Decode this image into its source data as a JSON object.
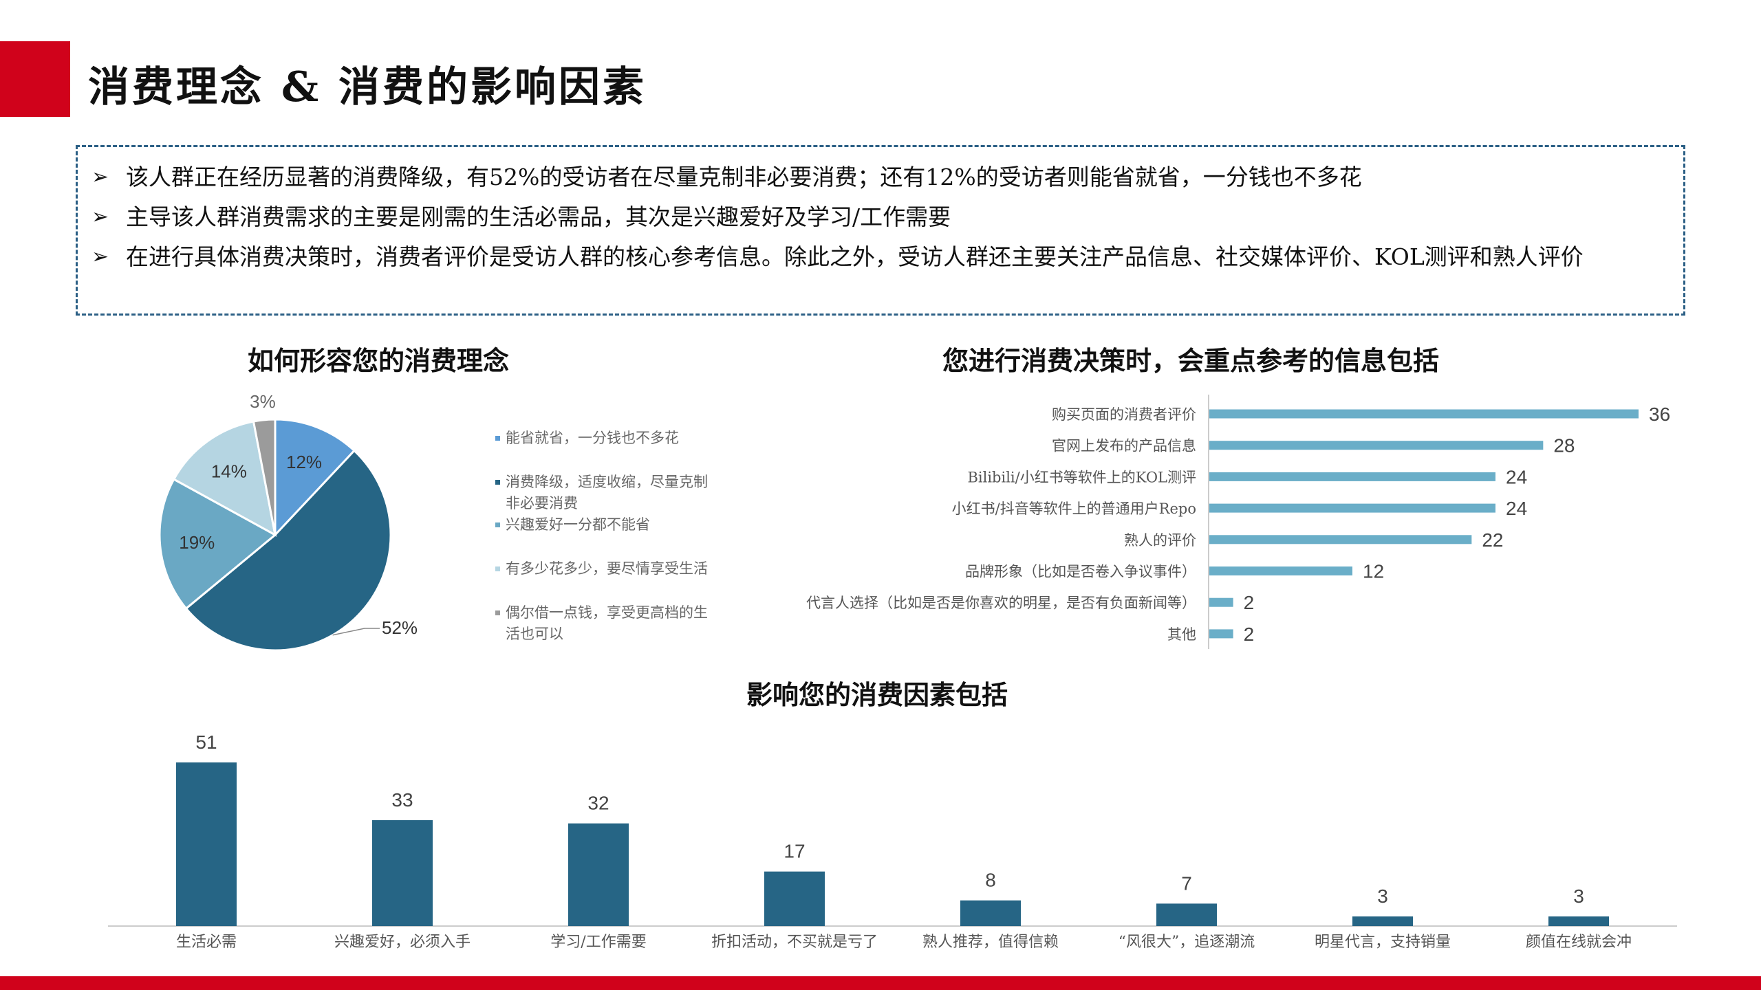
{
  "page": {
    "title": "消费理念 & 消费的影响因素",
    "bullet_symbol": "➢",
    "bullets": [
      "该人群正在经历显著的消费降级，有52%的受访者在尽量克制非必要消费；还有12%的受访者则能省就省，一分钱也不多花",
      "主导该人群消费需求的主要是刚需的生活必需品，其次是兴趣爱好及学习/工作需要",
      "在进行具体消费决策时，消费者评价是受访人群的核心参考信息。除此之外，受访人群还主要关注产品信息、社交媒体评价、KOL测评和熟人评价"
    ],
    "colors": {
      "accent": "#d0021b",
      "box_border": "#2b5f85"
    }
  },
  "chart_data": [
    {
      "type": "pie",
      "title": "如何形容您的消费理念",
      "slices": [
        {
          "label": "能省就省，一分钱也不多花",
          "value": 12,
          "display": "12%",
          "color": "#5b9bd5"
        },
        {
          "label": "消费降级，适度收缩，尽量克制非必要消费",
          "value": 52,
          "display": "52%",
          "color": "#266585"
        },
        {
          "label": "兴趣爱好一分都不能省",
          "value": 19,
          "display": "19%",
          "color": "#6aa8c4"
        },
        {
          "label": "有多少花多少，要尽情享受生活",
          "value": 14,
          "display": "14%",
          "color": "#b5d5e2"
        },
        {
          "label": "偶尔借一点钱，享受更高档的生活也可以",
          "value": 3,
          "display": "3%",
          "color": "#9b9b9b"
        }
      ],
      "legend_position": "right"
    },
    {
      "type": "bar",
      "orientation": "horizontal",
      "title": "您进行消费决策时，会重点参考的信息包括",
      "categories": [
        "购买页面的消费者评价",
        "官网上发布的产品信息",
        "Bilibili/小红书等软件上的KOL测评",
        "小红书/抖音等软件上的普通用户Repo",
        "熟人的评价",
        "品牌形象（比如是否卷入争议事件）",
        "代言人选择（比如是否是你喜欢的明星，是否有负面新闻等）",
        "其他"
      ],
      "values": [
        36,
        28,
        24,
        24,
        22,
        12,
        2,
        2
      ],
      "color": "#6aaec8",
      "xlim": [
        0,
        36
      ]
    },
    {
      "type": "bar",
      "orientation": "vertical",
      "title": "影响您的消费因素包括",
      "categories": [
        "生活必需",
        "兴趣爱好，必须入手",
        "学习/工作需要",
        "折扣活动，不买就是亏了",
        "熟人推荐，值得信赖",
        "“风很大”，追逐潮流",
        "明星代言，支持销量",
        "颜值在线就会冲"
      ],
      "values": [
        51,
        33,
        32,
        17,
        8,
        7,
        3,
        3
      ],
      "color": "#266585",
      "ylim": [
        0,
        51
      ]
    }
  ]
}
